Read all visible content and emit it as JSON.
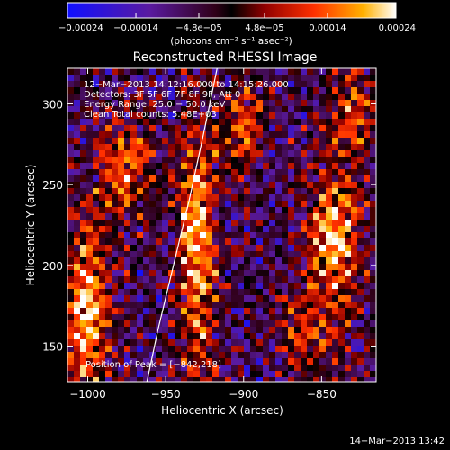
{
  "chart_data": {
    "type": "heatmap",
    "title": "Reconstructed RHESSI Image",
    "xlabel": "Heliocentric X (arcsec)",
    "ylabel": "Heliocentric Y (arcsec)",
    "xlim": [
      -1013,
      -815
    ],
    "ylim": [
      128,
      322
    ],
    "x_ticks": [
      -1000,
      -950,
      -900,
      -850
    ],
    "y_ticks": [
      150,
      200,
      250,
      300
    ],
    "x_tick_labels": [
      "−1000",
      "−950",
      "−900",
      "−850"
    ],
    "y_tick_labels": [
      "150",
      "200",
      "250",
      "300"
    ],
    "colorbar": {
      "range": [
        -0.00024,
        0.00024
      ],
      "ticks": [
        -0.00024,
        -0.00014,
        -4.8e-05,
        4.8e-05,
        0.00014,
        0.00024
      ],
      "tick_labels": [
        "−0.00024",
        "−0.00014",
        "−4.8e−05",
        "4.8e−05",
        "0.00014",
        "0.00024"
      ],
      "unit_label": "(photons cm⁻² s⁻¹ asec⁻²)"
    },
    "annotations": [
      "12−Mar−2013 14:12:16.000 to 14:15:26.000",
      "Detectors: 3F 5F 6F 7F 8F 9F, Att 0",
      "Energy Range: 25.0 − 50.0 keV",
      "Clean     Total counts: 5.48E+03"
    ],
    "peak_label": "Position of Peak = [−842,218]",
    "limb_curve": [
      [
        -962,
        128
      ],
      [
        -955,
        160
      ],
      [
        -945,
        200
      ],
      [
        -935,
        240
      ],
      [
        -926,
        280
      ],
      [
        -917,
        322
      ]
    ],
    "emission_bands": [
      {
        "x": -1000,
        "y": 175,
        "sx": 10,
        "sy": 38,
        "amp": 1.0
      },
      {
        "x": -975,
        "y": 260,
        "sx": 12,
        "sy": 22,
        "amp": 0.7
      },
      {
        "x": -930,
        "y": 215,
        "sx": 9,
        "sy": 55,
        "amp": 0.9
      },
      {
        "x": -900,
        "y": 285,
        "sx": 10,
        "sy": 20,
        "amp": 0.55
      },
      {
        "x": -842,
        "y": 218,
        "sx": 11,
        "sy": 30,
        "amp": 1.0
      },
      {
        "x": -830,
        "y": 295,
        "sx": 10,
        "sy": 20,
        "amp": 0.6
      },
      {
        "x": -860,
        "y": 160,
        "sx": 14,
        "sy": 18,
        "amp": 0.5
      }
    ]
  },
  "footer": {
    "timestamp": "14−Mar−2013 13:42"
  }
}
